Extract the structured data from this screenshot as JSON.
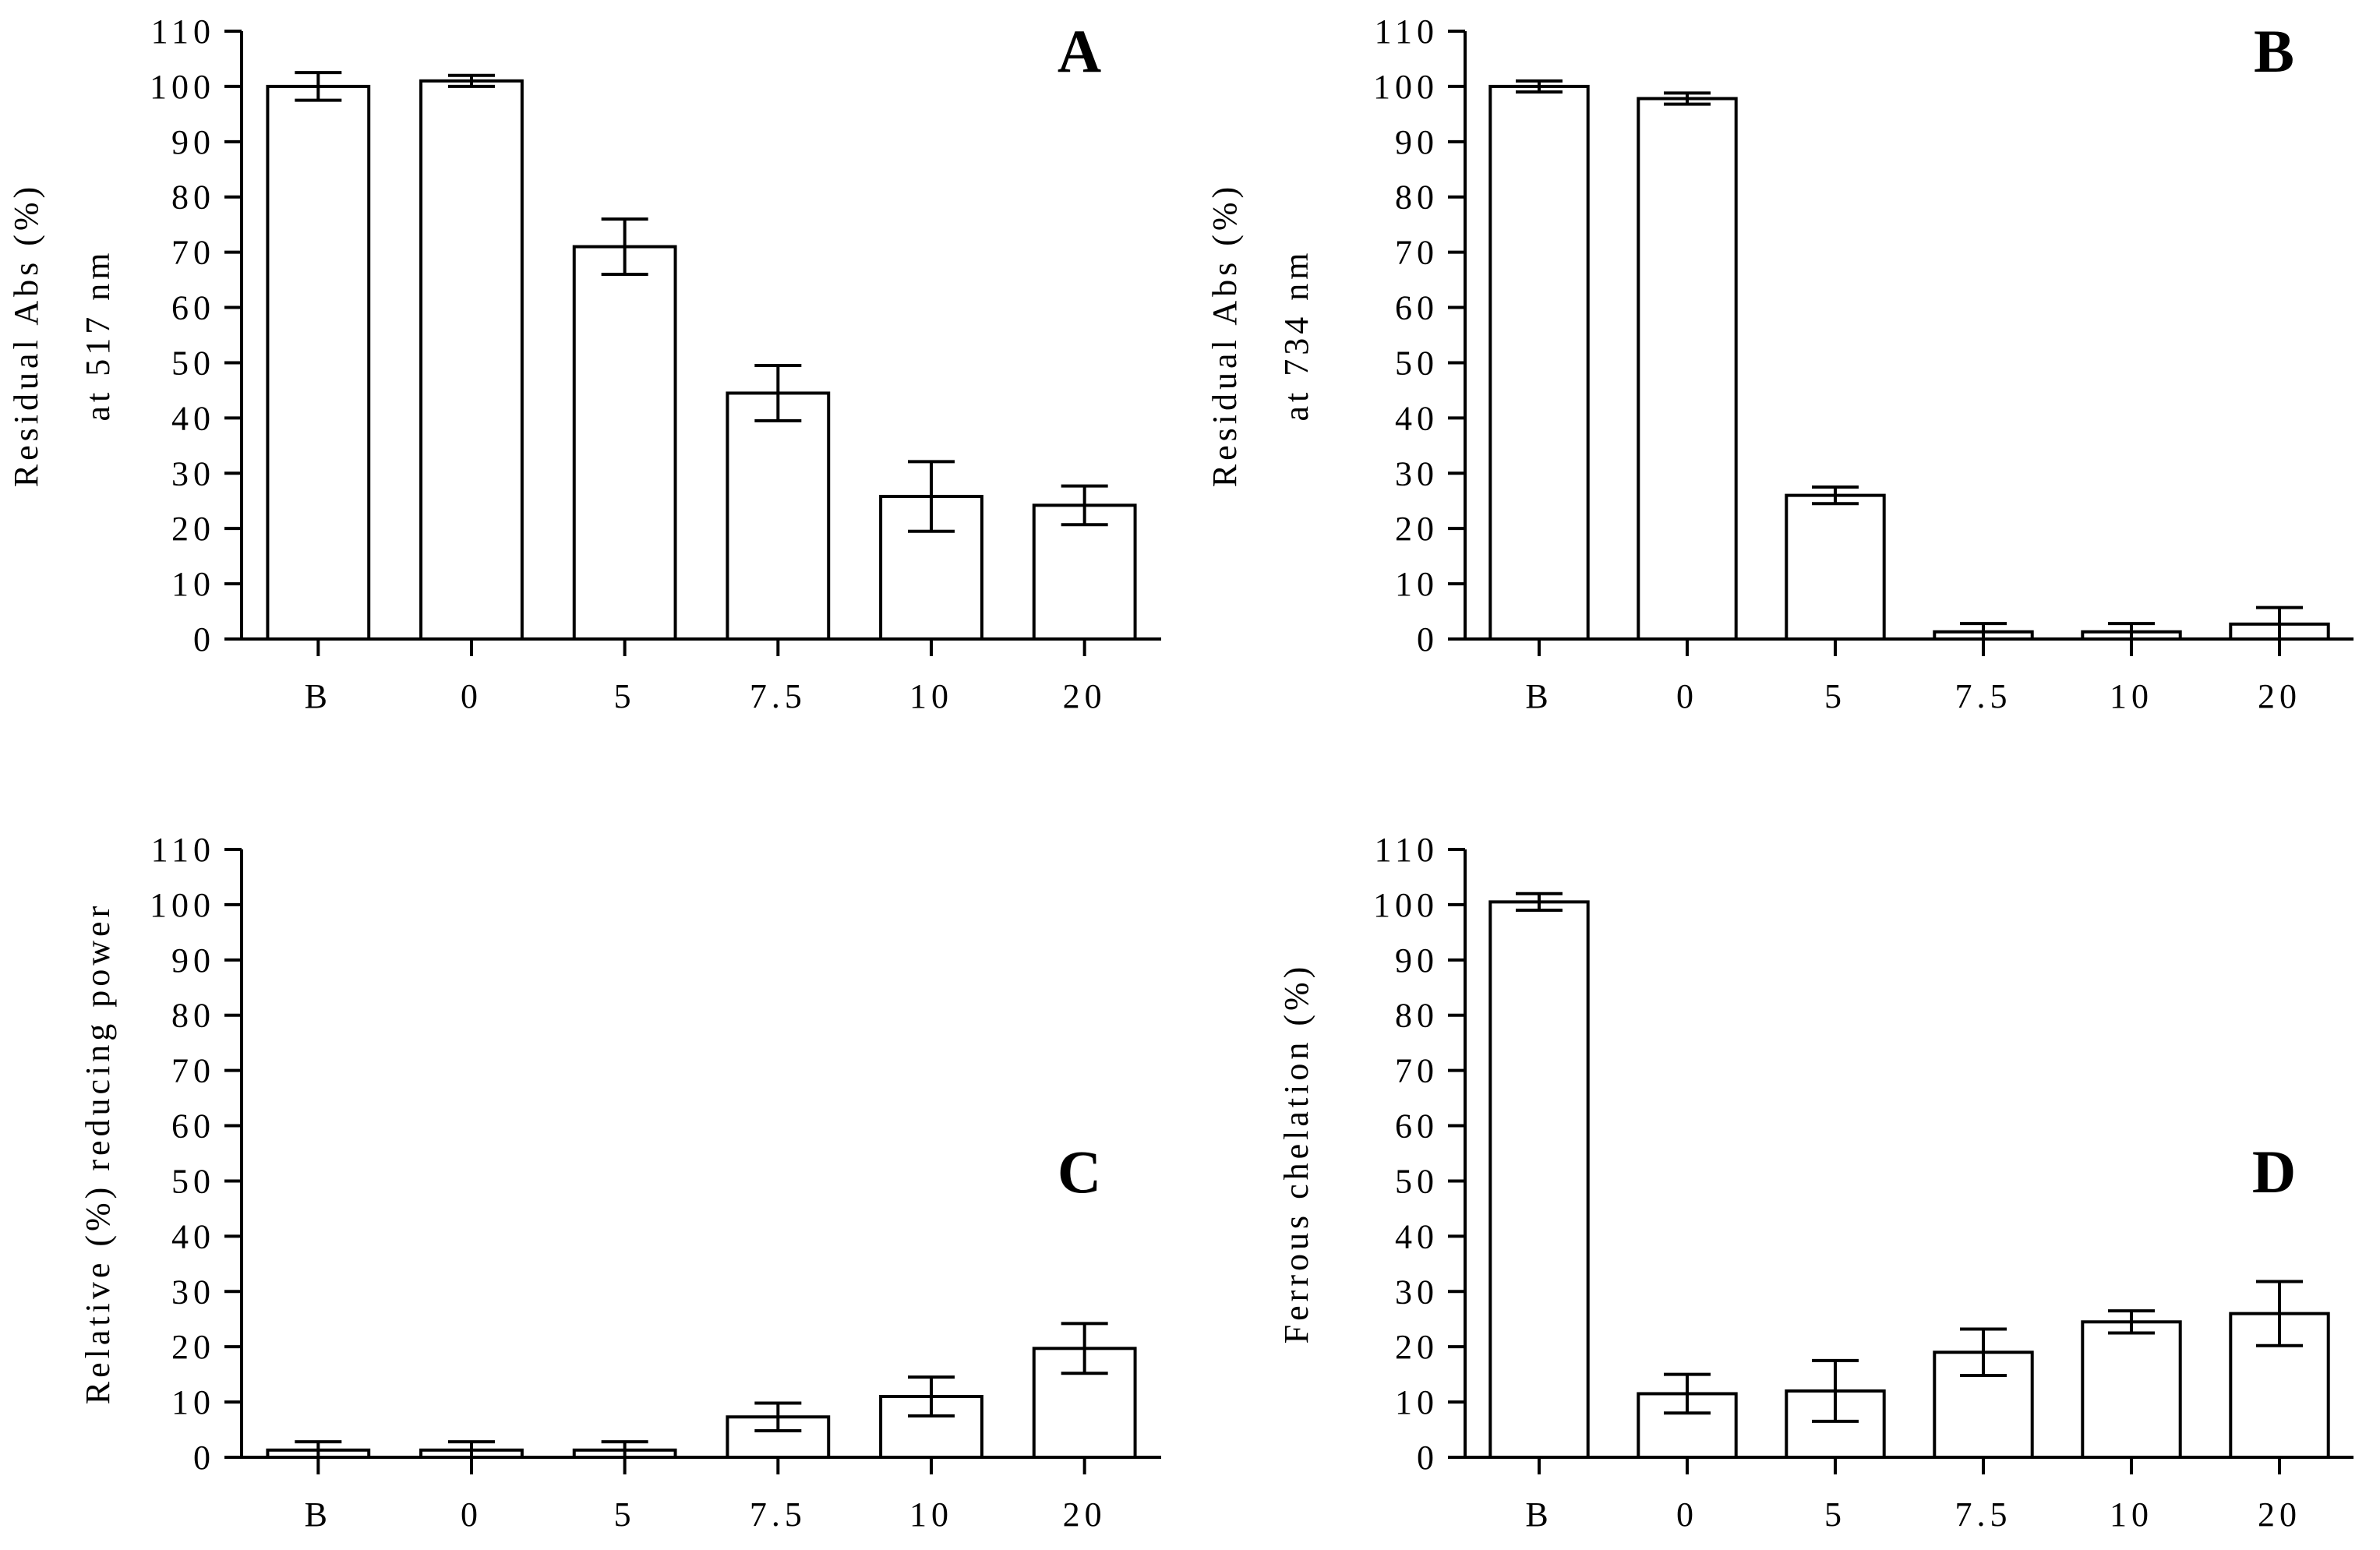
{
  "chart_data": [
    {
      "type": "bar",
      "panel": "A",
      "categories": [
        "B",
        "0",
        "5",
        "7.5",
        "10",
        "20"
      ],
      "values": [
        100,
        101,
        71,
        44.5,
        25.8,
        24.2
      ],
      "errors": [
        2.5,
        1,
        5,
        5,
        6.3,
        3.5
      ],
      "ylabel": [
        "Residual Abs (%)",
        "at 517 nm"
      ],
      "ylim": [
        0,
        110
      ],
      "yticks": [
        0,
        10,
        20,
        30,
        40,
        50,
        60,
        70,
        80,
        90,
        100,
        110
      ]
    },
    {
      "type": "bar",
      "panel": "B",
      "categories": [
        "B",
        "0",
        "5",
        "7.5",
        "10",
        "20"
      ],
      "values": [
        100,
        97.8,
        26,
        1.3,
        1.3,
        2.7
      ],
      "errors": [
        1,
        1,
        1.5,
        1.5,
        1.5,
        3
      ],
      "ylabel": [
        "Residual Abs (%)",
        "at 734 nm"
      ],
      "ylim": [
        0,
        110
      ],
      "yticks": [
        0,
        10,
        20,
        30,
        40,
        50,
        60,
        70,
        80,
        90,
        100,
        110
      ]
    },
    {
      "type": "bar",
      "panel": "C",
      "categories": [
        "B",
        "0",
        "5",
        "7.5",
        "10",
        "20"
      ],
      "values": [
        1.3,
        1.3,
        1.3,
        7.3,
        11,
        19.7
      ],
      "errors": [
        1.5,
        1.5,
        1.5,
        2.5,
        3.5,
        4.5
      ],
      "ylabel": [
        "Relative (%) reducing power"
      ],
      "ylim": [
        0,
        110
      ],
      "yticks": [
        0,
        10,
        20,
        30,
        40,
        50,
        60,
        70,
        80,
        90,
        100,
        110
      ]
    },
    {
      "type": "bar",
      "panel": "D",
      "categories": [
        "B",
        "0",
        "5",
        "7.5",
        "10",
        "20"
      ],
      "values": [
        100.5,
        11.5,
        12,
        19,
        24.5,
        26
      ],
      "errors": [
        1.5,
        3.5,
        5.5,
        4.2,
        2,
        5.8
      ],
      "ylabel": [
        "Ferrous chelation (%)"
      ],
      "ylim": [
        0,
        110
      ],
      "yticks": [
        0,
        10,
        20,
        30,
        40,
        50,
        60,
        70,
        80,
        90,
        100,
        110
      ]
    }
  ]
}
